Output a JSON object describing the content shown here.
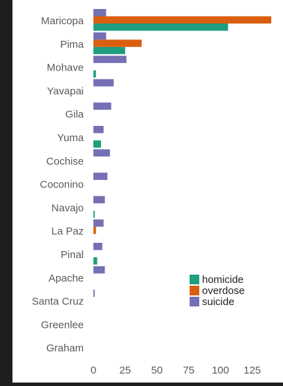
{
  "chart_data": {
    "type": "bar",
    "orientation": "horizontal",
    "categories": [
      "Maricopa",
      "Pima",
      "Mohave",
      "Yavapai",
      "Gila",
      "Yuma",
      "Cochise",
      "Coconino",
      "Navajo",
      "La Paz",
      "Pinal",
      "Apache",
      "Santa Cruz",
      "Greenlee",
      "Graham"
    ],
    "series": [
      {
        "name": "homicide",
        "color": "#1f9e7f",
        "values": [
          106,
          25,
          2,
          0,
          0,
          6,
          0,
          0,
          1,
          0,
          3,
          0,
          0,
          0,
          0
        ]
      },
      {
        "name": "overdose",
        "color": "#d95f0e",
        "values": [
          140,
          38,
          0,
          0,
          0,
          0,
          0,
          0,
          0,
          2,
          0,
          0,
          0,
          0,
          0
        ]
      },
      {
        "name": "suicide",
        "color": "#7570b3",
        "values": [
          10,
          10,
          26,
          16,
          14,
          8,
          13,
          11,
          9,
          8,
          7,
          9,
          1,
          0,
          0
        ]
      }
    ],
    "xticks": [
      "0",
      "25",
      "50",
      "75",
      "100",
      "125"
    ],
    "xlim": [
      0,
      140
    ],
    "grid": false,
    "legend_position": "bottom-right",
    "title": "",
    "xlabel": "",
    "ylabel": ""
  }
}
